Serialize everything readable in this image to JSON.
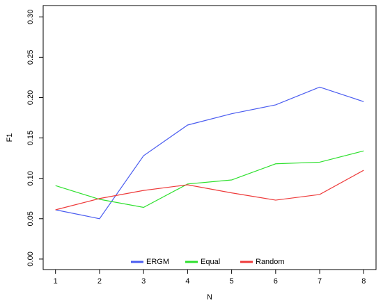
{
  "chart_data": {
    "type": "line",
    "x": [
      1,
      2,
      3,
      4,
      5,
      6,
      7,
      8
    ],
    "series": [
      {
        "name": "ERGM",
        "color": "#4a5cf0",
        "values": [
          0.061,
          0.05,
          0.128,
          0.166,
          0.18,
          0.191,
          0.213,
          0.195
        ]
      },
      {
        "name": "Equal",
        "color": "#2ee02e",
        "values": [
          0.091,
          0.074,
          0.064,
          0.093,
          0.098,
          0.118,
          0.12,
          0.134
        ]
      },
      {
        "name": "Random",
        "color": "#ee3a3a",
        "values": [
          0.061,
          0.075,
          0.085,
          0.092,
          0.082,
          0.073,
          0.08,
          0.11
        ]
      }
    ],
    "x_label": "N",
    "y_label": "F1",
    "xlim": [
      0.72,
      8.28
    ],
    "xticks": [
      1,
      2,
      3,
      4,
      5,
      6,
      7,
      8
    ],
    "ylim": [
      -0.013,
      0.314
    ],
    "yticks": [
      {
        "value": 0,
        "label": "0.00"
      },
      0.05,
      {
        "value": 0.1,
        "label": "0.10"
      },
      0.15,
      {
        "value": 0.2,
        "label": "0.20"
      },
      0.25,
      {
        "value": 0.3,
        "label": "0.30"
      }
    ],
    "legend": "bottom"
  }
}
